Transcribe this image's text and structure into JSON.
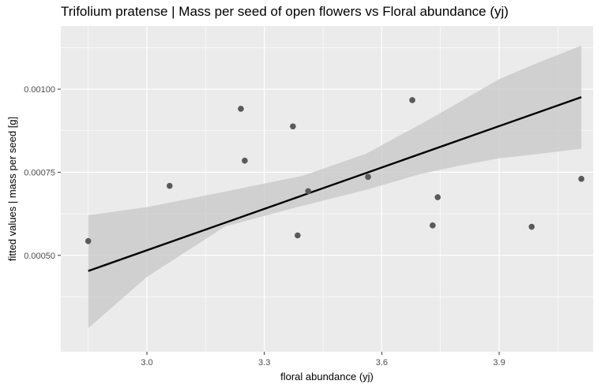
{
  "chart_data": {
    "type": "scatter",
    "title": "Trifolium pratense | Mass per seed of open flowers vs Floral abundance (yj)",
    "xlabel": "floral abundance (yj)",
    "ylabel": "fitted values | mass per seed [g]",
    "xlim": [
      2.78,
      4.14
    ],
    "ylim": [
      0.00021,
      0.00119
    ],
    "x_ticks": [
      3.0,
      3.3,
      3.6,
      3.9
    ],
    "x_tick_labels": [
      "3.0",
      "3.3",
      "3.6",
      "3.9"
    ],
    "y_ticks": [
      0.0005,
      0.00075,
      0.001
    ],
    "y_tick_labels": [
      "0.00050",
      "0.00075",
      "0.00100"
    ],
    "grid": true,
    "colors": {
      "panel_background": "#ebebeb",
      "grid": "#ffffff",
      "points": "#595959",
      "ribbon": "#c7c7c7",
      "fit_line": "#000000"
    },
    "points": [
      {
        "x": 2.85,
        "y": 0.000543
      },
      {
        "x": 3.058,
        "y": 0.000709
      },
      {
        "x": 3.24,
        "y": 0.000941
      },
      {
        "x": 3.25,
        "y": 0.000785
      },
      {
        "x": 3.373,
        "y": 0.000888
      },
      {
        "x": 3.385,
        "y": 0.00056
      },
      {
        "x": 3.412,
        "y": 0.000693
      },
      {
        "x": 3.565,
        "y": 0.000736
      },
      {
        "x": 3.678,
        "y": 0.000967
      },
      {
        "x": 3.73,
        "y": 0.00059
      },
      {
        "x": 3.743,
        "y": 0.000675
      },
      {
        "x": 3.983,
        "y": 0.000586
      },
      {
        "x": 4.11,
        "y": 0.00073
      }
    ],
    "fit_line": {
      "x": [
        2.85,
        4.11
      ],
      "y": [
        0.000453,
        0.000976
      ]
    },
    "confidence_band": {
      "x": [
        2.85,
        3.0,
        3.2,
        3.4,
        3.56,
        3.7,
        3.8,
        3.9,
        4.0,
        4.11
      ],
      "upper": [
        0.000621,
        0.000645,
        0.000692,
        0.00074,
        0.000806,
        0.000895,
        0.000962,
        0.00103,
        0.00108,
        0.001131
      ],
      "lower": [
        0.000281,
        0.000435,
        0.000587,
        0.00065,
        0.000697,
        0.000745,
        0.00077,
        0.000792,
        0.000805,
        0.000821
      ]
    }
  }
}
